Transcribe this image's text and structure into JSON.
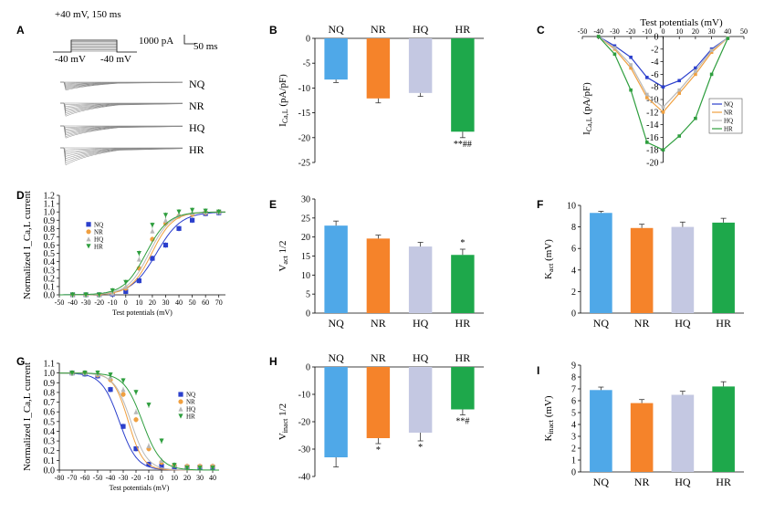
{
  "colors": {
    "NQ": "#4fa8e8",
    "NR": "#f5832a",
    "HQ": "#c4c8e2",
    "HR": "#1ea84b",
    "NQ_line": "#2b3fcc",
    "NR_line": "#f0a040",
    "HQ_line": "#b8b8b8",
    "HR_line": "#2e9e3e"
  },
  "panel_labels": {
    "A": "A",
    "B": "B",
    "C": "C",
    "D": "D",
    "E": "E",
    "F": "F",
    "G": "G",
    "H": "H",
    "I": "I"
  },
  "panel_A": {
    "protocol_top": "+40 mV, 150 ms",
    "protocol_left": "-40 mV",
    "protocol_right": "-40 mV",
    "scale_current": "1000 pA",
    "scale_time": "50 ms",
    "traces": [
      "NQ",
      "NR",
      "HQ",
      "HR"
    ]
  },
  "chart_data": [
    {
      "panel": "B",
      "type": "bar",
      "categories": [
        "NQ",
        "NR",
        "HQ",
        "HR"
      ],
      "values": [
        -8.3,
        -12.1,
        -11.0,
        -18.8
      ],
      "errors": [
        0.6,
        0.9,
        0.7,
        1.2
      ],
      "annotations": [
        "",
        "",
        "",
        "**##"
      ],
      "ylabel": "I_Ca,L (pA/pF)",
      "yticks": [
        "0",
        "-5",
        "-10",
        "-15",
        "-20",
        "-25"
      ],
      "ylim": [
        -25,
        0
      ]
    },
    {
      "panel": "C",
      "type": "line",
      "title": "Test potentials (mV)",
      "ylabel": "I_Ca,L (pA/pF)",
      "x": [
        -40,
        -30,
        -20,
        -10,
        0,
        10,
        20,
        30,
        40
      ],
      "xticks": [
        "-50",
        "-40",
        "-30",
        "-20",
        "-10",
        "0",
        "10",
        "20",
        "30",
        "40",
        "50"
      ],
      "yticks": [
        "0",
        "-2",
        "-4",
        "-6",
        "-8",
        "-10",
        "-12",
        "-14",
        "-16",
        "-18",
        "-20"
      ],
      "xlim": [
        -50,
        50
      ],
      "ylim": [
        -20,
        0
      ],
      "legend": [
        "NQ",
        "NR",
        "HQ",
        "HR"
      ],
      "series": [
        {
          "name": "NQ",
          "values": [
            0,
            -1.5,
            -3.3,
            -6.5,
            -8.0,
            -7.0,
            -5.0,
            -2.0,
            -0.2
          ]
        },
        {
          "name": "NR",
          "values": [
            0,
            -2.0,
            -5.0,
            -9.7,
            -12.0,
            -9.0,
            -6.0,
            -2.5,
            -0.2
          ]
        },
        {
          "name": "HQ",
          "values": [
            0,
            -1.8,
            -4.5,
            -9.2,
            -11.2,
            -8.5,
            -5.5,
            -2.2,
            -0.2
          ]
        },
        {
          "name": "HR",
          "values": [
            0,
            -2.8,
            -8.5,
            -16.8,
            -18.0,
            -15.8,
            -13.0,
            -6.0,
            -0.3
          ]
        }
      ]
    },
    {
      "panel": "D",
      "type": "scatter",
      "xlabel": "Test potentials (mV)",
      "ylabel": "Normalized I_Ca,L current",
      "xticks": [
        "-50",
        "-40",
        "-30",
        "-20",
        "-10",
        "0",
        "10",
        "20",
        "30",
        "40",
        "50",
        "60",
        "70"
      ],
      "yticks": [
        "0.0",
        "0.1",
        "0.2",
        "0.3",
        "0.4",
        "0.5",
        "0.6",
        "0.7",
        "0.8",
        "0.9",
        "1.0",
        "1.1",
        "1.2"
      ],
      "xlim": [
        -50,
        75
      ],
      "ylim": [
        0,
        1.2
      ],
      "legend": [
        "NQ",
        "NR",
        "HQ",
        "HR"
      ],
      "x": [
        -40,
        -30,
        -20,
        -10,
        0,
        10,
        20,
        30,
        40,
        50,
        60,
        70
      ],
      "series": [
        {
          "name": "NQ",
          "values": [
            0,
            0,
            0,
            0.01,
            0.04,
            0.17,
            0.44,
            0.6,
            0.8,
            0.9,
            0.98,
            0.99
          ],
          "v_half": 23,
          "k": 9.3
        },
        {
          "name": "NR",
          "values": [
            0,
            0,
            0,
            0.02,
            0.08,
            0.32,
            0.67,
            0.86,
            0.95,
            0.97,
            0.99,
            1.0
          ],
          "v_half": 19.5,
          "k": 7.9
        },
        {
          "name": "HQ",
          "values": [
            0,
            0,
            0,
            0.02,
            0.1,
            0.43,
            0.77,
            0.9,
            0.97,
            0.99,
            1.0,
            1.0
          ],
          "v_half": 17.5,
          "k": 8.0
        },
        {
          "name": "HR",
          "values": [
            0,
            0,
            0,
            0.05,
            0.15,
            0.5,
            0.84,
            0.96,
            1.0,
            1.02,
            1.01,
            1.0
          ],
          "v_half": 15.2,
          "k": 8.4
        }
      ]
    },
    {
      "panel": "E",
      "type": "bar",
      "categories": [
        "NQ",
        "NR",
        "HQ",
        "HR"
      ],
      "values": [
        23.0,
        19.6,
        17.5,
        15.3
      ],
      "errors": [
        1.2,
        0.9,
        1.1,
        1.5
      ],
      "annotations": [
        "",
        "",
        "",
        "*"
      ],
      "ylabel": "V_act 1/2",
      "yticks": [
        "0",
        "5",
        "10",
        "15",
        "20",
        "25",
        "30"
      ],
      "ylim": [
        0,
        30
      ]
    },
    {
      "panel": "F",
      "type": "bar",
      "categories": [
        "NQ",
        "NR",
        "HQ",
        "HR"
      ],
      "values": [
        9.3,
        7.9,
        8.0,
        8.4
      ],
      "errors": [
        0.15,
        0.35,
        0.45,
        0.4
      ],
      "annotations": [
        "",
        "",
        "",
        ""
      ],
      "ylabel": "K_act (mV)",
      "yticks": [
        "0",
        "2",
        "4",
        "6",
        "8",
        "10"
      ],
      "ylim": [
        0,
        10
      ]
    },
    {
      "panel": "G",
      "type": "scatter",
      "xlabel": "Test potentials (mV)",
      "ylabel": "Normalized I_Ca,L current",
      "xticks": [
        "-80",
        "-70",
        "-60",
        "-50",
        "-40",
        "-30",
        "-20",
        "-10",
        "0",
        "10",
        "20",
        "30",
        "40"
      ],
      "yticks": [
        "0.0",
        "0.1",
        "0.2",
        "0.3",
        "0.4",
        "0.5",
        "0.6",
        "0.7",
        "0.8",
        "0.9",
        "1.0",
        "1.1"
      ],
      "xlim": [
        -80,
        45
      ],
      "ylim": [
        0,
        1.1
      ],
      "legend": [
        "NQ",
        "NR",
        "HQ",
        "HR"
      ],
      "x": [
        -70,
        -60,
        -50,
        -40,
        -30,
        -20,
        -10,
        0,
        10,
        20,
        30,
        40
      ],
      "series": [
        {
          "name": "NQ",
          "values": [
            1.0,
            0.99,
            0.97,
            0.83,
            0.45,
            0.22,
            0.06,
            0.04,
            0.03,
            0.03,
            0.03,
            0.03
          ],
          "v_half": -33,
          "k": 6.9
        },
        {
          "name": "NR",
          "values": [
            1.0,
            1.0,
            0.98,
            0.93,
            0.78,
            0.52,
            0.22,
            0.08,
            0.05,
            0.04,
            0.04,
            0.04
          ],
          "v_half": -26,
          "k": 5.8
        },
        {
          "name": "HQ",
          "values": [
            1.0,
            1.0,
            0.99,
            0.96,
            0.83,
            0.6,
            0.25,
            0.1,
            0.05,
            0.04,
            0.04,
            0.04
          ],
          "v_half": -24,
          "k": 6.5
        },
        {
          "name": "HR",
          "values": [
            1.0,
            1.0,
            1.0,
            0.98,
            0.92,
            0.8,
            0.67,
            0.3,
            0.05,
            0.02,
            0.02,
            0.02
          ],
          "v_half": -15,
          "k": 7.2
        }
      ]
    },
    {
      "panel": "H",
      "type": "bar",
      "categories": [
        "NQ",
        "NR",
        "HQ",
        "HR"
      ],
      "values": [
        -33.0,
        -26.0,
        -24.0,
        -15.5
      ],
      "errors": [
        3.5,
        2.0,
        3.0,
        2.0
      ],
      "annotations": [
        "",
        "*",
        "*",
        "**#"
      ],
      "ylabel": "V_inact 1/2",
      "yticks": [
        "0",
        "-10",
        "-20",
        "-30",
        "-40"
      ],
      "ylim": [
        -40,
        0
      ]
    },
    {
      "panel": "I",
      "type": "bar",
      "categories": [
        "NQ",
        "NR",
        "HQ",
        "HR"
      ],
      "values": [
        6.9,
        5.8,
        6.5,
        7.2
      ],
      "errors": [
        0.25,
        0.3,
        0.3,
        0.4
      ],
      "annotations": [
        "",
        "",
        "",
        ""
      ],
      "ylabel": "K_inact (mV)",
      "yticks": [
        "0",
        "1",
        "2",
        "3",
        "4",
        "5",
        "6",
        "7",
        "8",
        "9"
      ],
      "ylim": [
        0,
        9
      ]
    }
  ]
}
